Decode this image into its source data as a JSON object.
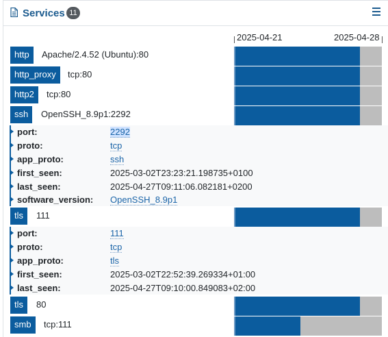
{
  "header": {
    "title": "Services",
    "count": "11"
  },
  "timeline": {
    "start_label": "2025-04-21",
    "end_label": "2025-04-28"
  },
  "services": [
    {
      "name": "http",
      "label": "Apache/2.4.52 (Ubuntu):80",
      "coverage": 0.85
    },
    {
      "name": "http_proxy",
      "label": "tcp:80",
      "coverage": 0.85
    },
    {
      "name": "http2",
      "label": "tcp:80",
      "coverage": 0.85
    },
    {
      "name": "ssh",
      "label": "OpenSSH_8.9p1:2292",
      "coverage": 0.85,
      "details": [
        {
          "key": "port:",
          "value": "2292",
          "style": "link",
          "highlight": true
        },
        {
          "key": "proto:",
          "value": "tcp",
          "style": "link"
        },
        {
          "key": "app_proto:",
          "value": "ssh",
          "style": "link"
        },
        {
          "key": "first_seen:",
          "value": "2025-03-02T23:23:21.198735+0100",
          "style": "plain"
        },
        {
          "key": "last_seen:",
          "value": "2025-04-27T09:11:06.082181+0200",
          "style": "plain"
        },
        {
          "key": "software_version:",
          "value": "OpenSSH_8.9p1",
          "style": "link"
        }
      ]
    },
    {
      "name": "tls",
      "label": "111",
      "coverage": 0.85,
      "details": [
        {
          "key": "port:",
          "value": "111",
          "style": "link"
        },
        {
          "key": "proto:",
          "value": "tcp",
          "style": "link"
        },
        {
          "key": "app_proto:",
          "value": "tls",
          "style": "link"
        },
        {
          "key": "first_seen:",
          "value": "2025-03-02T22:52:39.269334+01:00",
          "style": "plain"
        },
        {
          "key": "last_seen:",
          "value": "2025-04-27T09:10:00.849083+02:00",
          "style": "plain"
        }
      ]
    },
    {
      "name": "tls",
      "label": "80",
      "coverage": 0.85
    },
    {
      "name": "smb",
      "label": "tcp:111",
      "coverage": 0.45
    }
  ]
}
